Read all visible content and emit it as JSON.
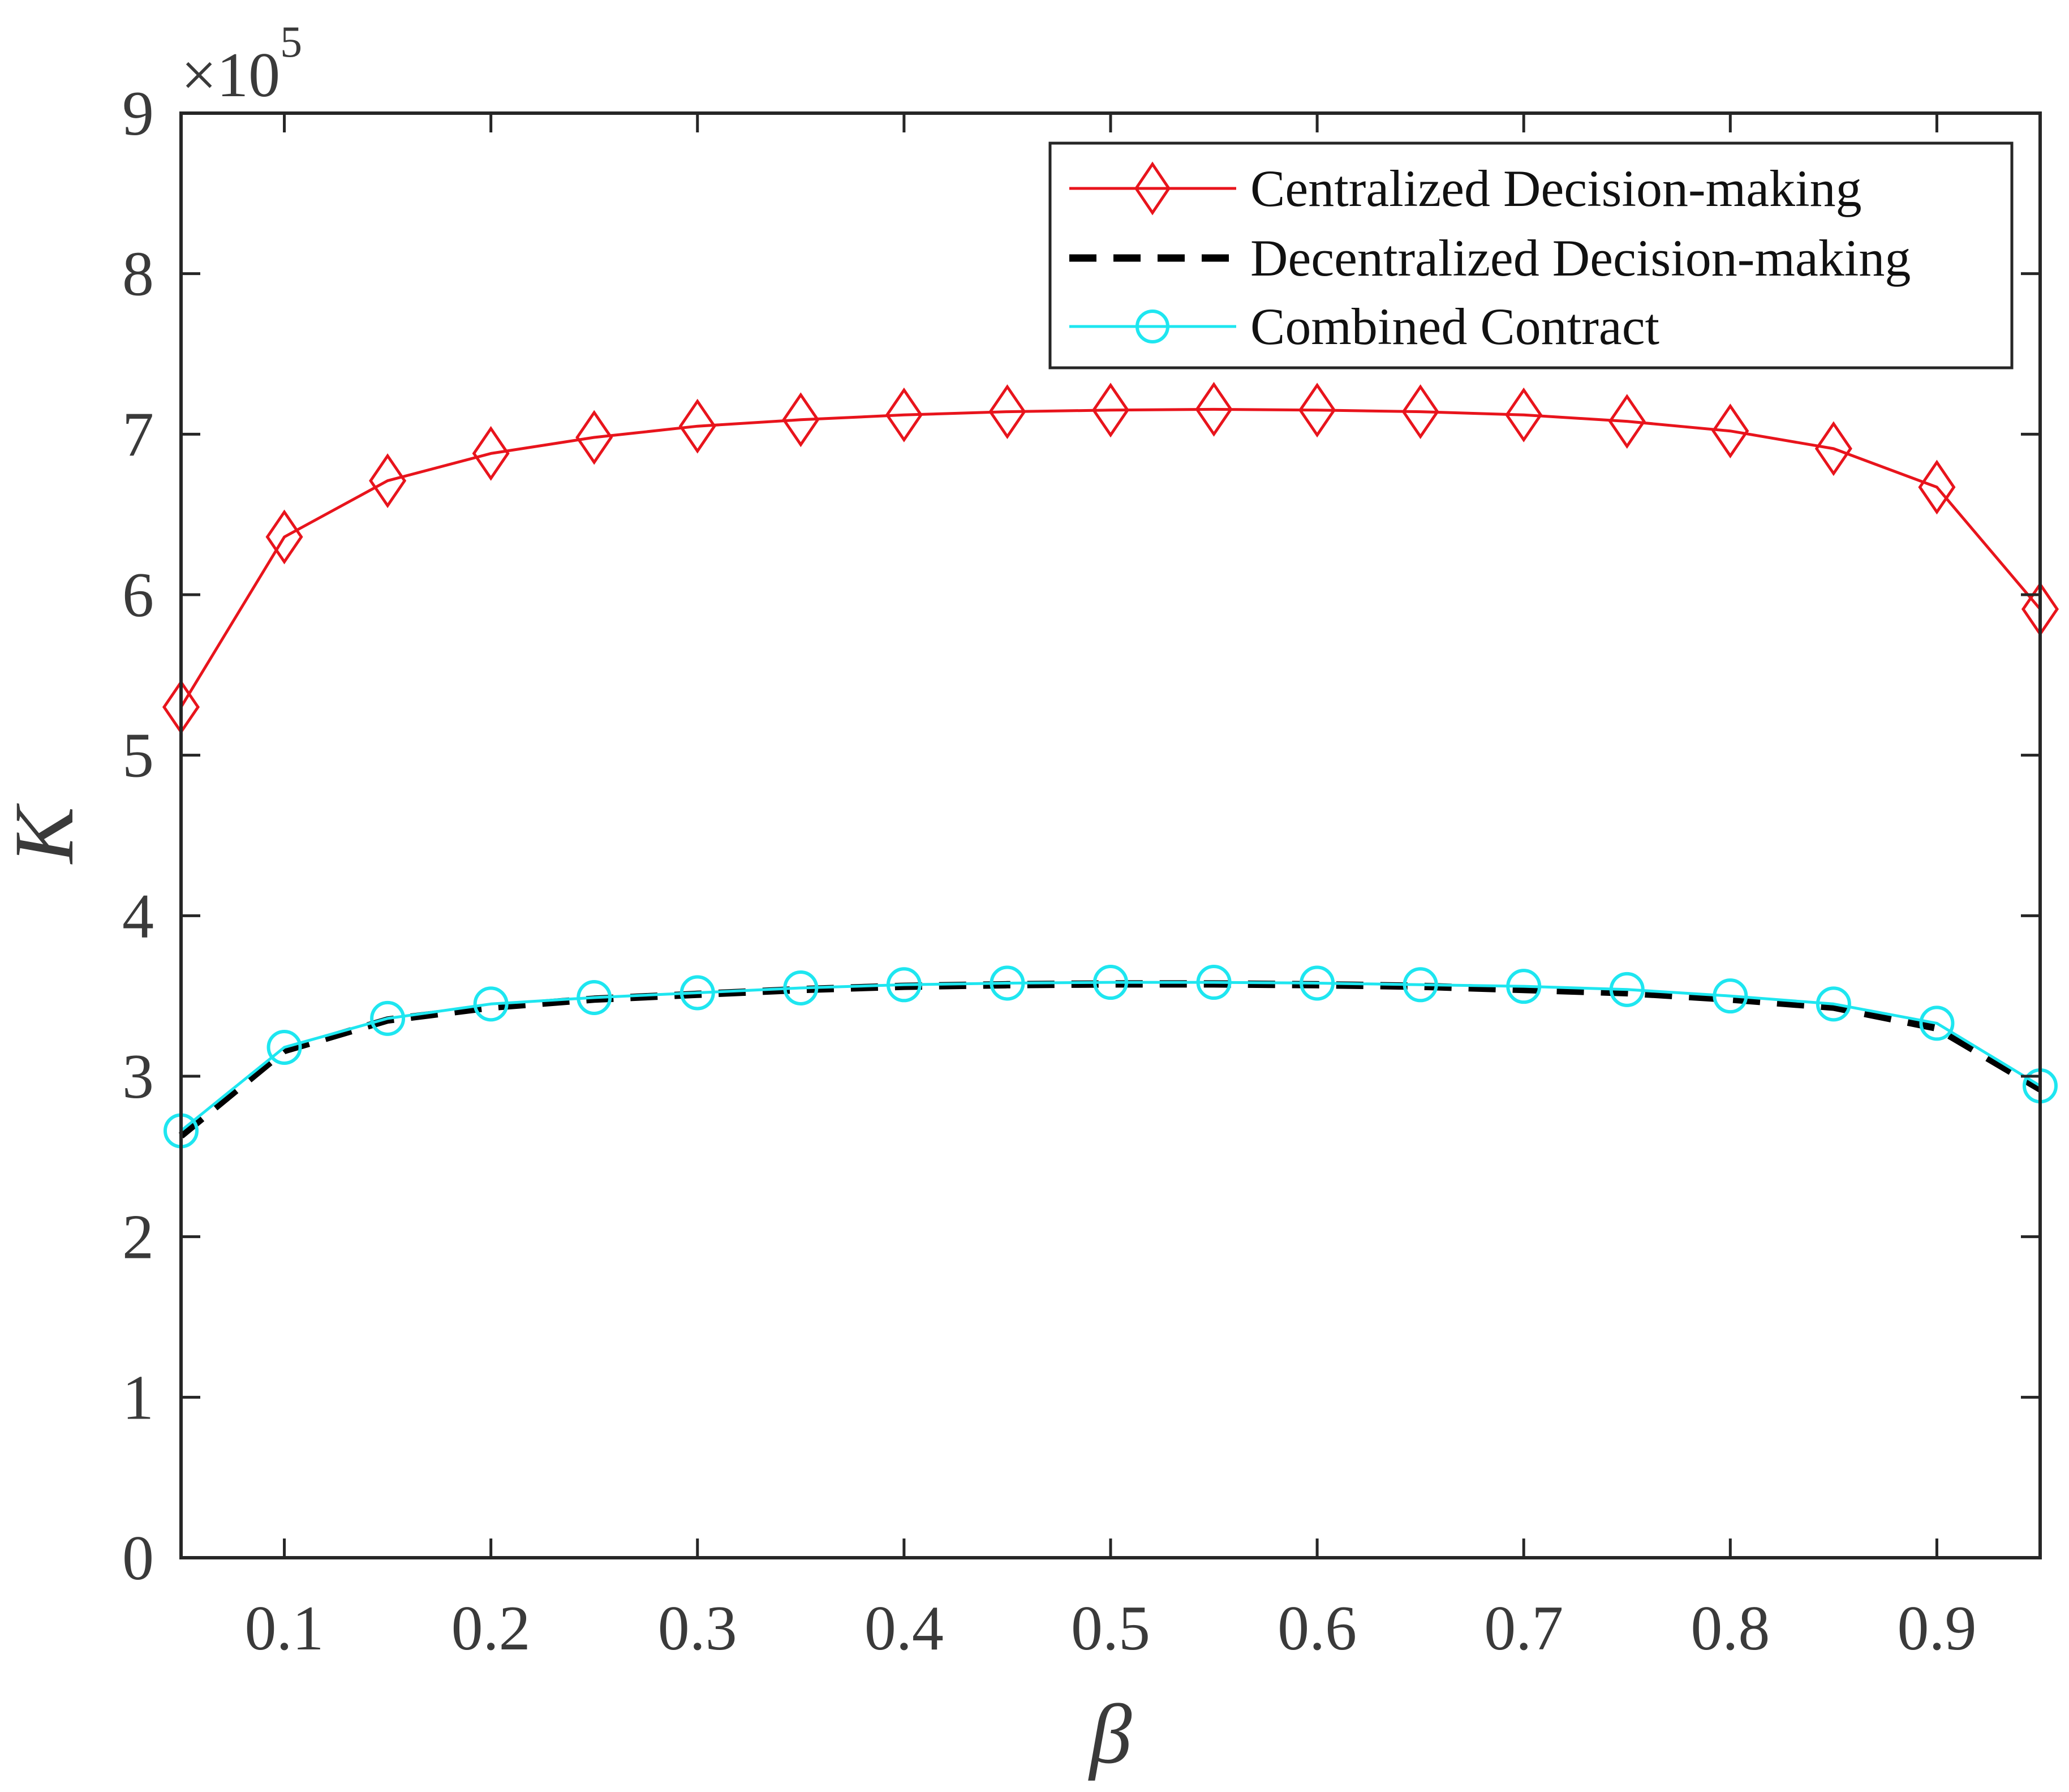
{
  "chart_data": {
    "type": "line",
    "title": "",
    "xlabel": "β",
    "ylabel": "K",
    "y_exponent_label": "×10",
    "y_exponent_power": "5",
    "xlim": [
      0.05,
      0.95
    ],
    "ylim": [
      0,
      9
    ],
    "x_ticks": [
      0.1,
      0.2,
      0.3,
      0.4,
      0.5,
      0.6,
      0.7,
      0.8,
      0.9
    ],
    "x_tick_labels": [
      "0.1",
      "0.2",
      "0.3",
      "0.4",
      "0.5",
      "0.6",
      "0.7",
      "0.8",
      "0.9"
    ],
    "y_ticks": [
      0,
      1,
      2,
      3,
      4,
      5,
      6,
      7,
      8,
      9
    ],
    "y_tick_labels": [
      "0",
      "1",
      "2",
      "3",
      "4",
      "5",
      "6",
      "7",
      "8",
      "9"
    ],
    "grid": false,
    "legend_position": "top-right",
    "x": [
      0.05,
      0.1,
      0.15,
      0.2,
      0.25,
      0.3,
      0.35,
      0.4,
      0.45,
      0.5,
      0.55,
      0.6,
      0.65,
      0.7,
      0.75,
      0.8,
      0.85,
      0.9,
      0.95
    ],
    "series": [
      {
        "name": "Centralized Decision-making",
        "color": "#e8141c",
        "line_style": "solid",
        "marker": "diamond",
        "values": [
          5.3,
          6.36,
          6.71,
          6.88,
          6.98,
          7.05,
          7.09,
          7.12,
          7.14,
          7.15,
          7.155,
          7.15,
          7.14,
          7.12,
          7.08,
          7.02,
          6.91,
          6.67,
          5.91
        ]
      },
      {
        "name": "Decentralized Decision-making",
        "color": "#000000",
        "line_style": "dashed",
        "marker": "none",
        "values": [
          2.63,
          3.16,
          3.35,
          3.43,
          3.48,
          3.51,
          3.54,
          3.56,
          3.57,
          3.575,
          3.575,
          3.57,
          3.56,
          3.54,
          3.52,
          3.48,
          3.43,
          3.3,
          2.92
        ]
      },
      {
        "name": "Combined Contract",
        "color": "#1ee6f0",
        "line_style": "solid",
        "marker": "circle",
        "values": [
          2.66,
          3.18,
          3.36,
          3.45,
          3.49,
          3.52,
          3.55,
          3.57,
          3.58,
          3.585,
          3.585,
          3.58,
          3.57,
          3.56,
          3.54,
          3.5,
          3.45,
          3.33,
          2.94
        ]
      }
    ]
  }
}
